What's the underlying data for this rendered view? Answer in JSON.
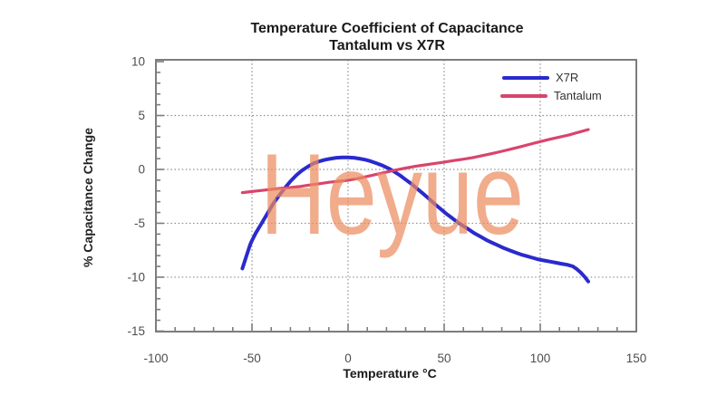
{
  "chart_data": {
    "type": "line",
    "title": "Temperature Coefficient of Capacitance",
    "subtitle": "Tantalum vs X7R",
    "xlabel": "Temperature °C",
    "ylabel": "% Capacitance Change",
    "xlim": [
      -100,
      150
    ],
    "ylim": [
      -15.05,
      10.17
    ],
    "x_ticks": [
      -100,
      -50,
      0,
      50,
      100,
      150
    ],
    "y_ticks": [
      10,
      5,
      0,
      -5,
      -10,
      -15
    ],
    "x_minor_step": 10,
    "y_minor_step": 1,
    "x_gridlines": [
      -50,
      0,
      50,
      100
    ],
    "y_gridlines": [
      5,
      0,
      -5,
      -10
    ],
    "grid_style": "dotted",
    "legend_position": "top-right-inside",
    "colors": {
      "axis": "#7d7d7d",
      "grid": "#8f8f8f",
      "tick_label": "#4d4d4d",
      "title": "#1a1a1a"
    },
    "watermark": {
      "text": "Heyue",
      "color": "rgba(235,140,95,0.72)"
    },
    "series": [
      {
        "name": "X7R",
        "color": "#2a2acd",
        "width": 4,
        "points": [
          [
            -55,
            -9.2
          ],
          [
            -53,
            -8.1
          ],
          [
            -51,
            -7.0
          ],
          [
            -50,
            -6.6
          ],
          [
            -48,
            -5.9
          ],
          [
            -45,
            -5.0
          ],
          [
            -42,
            -4.1
          ],
          [
            -39,
            -3.2
          ],
          [
            -36,
            -2.45
          ],
          [
            -33,
            -1.75
          ],
          [
            -30,
            -1.1
          ],
          [
            -27,
            -0.55
          ],
          [
            -24,
            -0.1
          ],
          [
            -21,
            0.25
          ],
          [
            -18,
            0.55
          ],
          [
            -15,
            0.75
          ],
          [
            -12,
            0.9
          ],
          [
            -9,
            1.0
          ],
          [
            -6,
            1.08
          ],
          [
            -3,
            1.12
          ],
          [
            0,
            1.12
          ],
          [
            3,
            1.08
          ],
          [
            6,
            1.0
          ],
          [
            9,
            0.9
          ],
          [
            12,
            0.75
          ],
          [
            15,
            0.55
          ],
          [
            18,
            0.35
          ],
          [
            21,
            0.1
          ],
          [
            24,
            -0.2
          ],
          [
            27,
            -0.55
          ],
          [
            30,
            -0.95
          ],
          [
            33,
            -1.35
          ],
          [
            36,
            -1.8
          ],
          [
            39,
            -2.25
          ],
          [
            42,
            -2.7
          ],
          [
            45,
            -3.2
          ],
          [
            48,
            -3.65
          ],
          [
            51,
            -4.1
          ],
          [
            54,
            -4.5
          ],
          [
            57,
            -4.9
          ],
          [
            60,
            -5.25
          ],
          [
            63,
            -5.6
          ],
          [
            66,
            -5.95
          ],
          [
            69,
            -6.25
          ],
          [
            72,
            -6.55
          ],
          [
            75,
            -6.8
          ],
          [
            78,
            -7.05
          ],
          [
            81,
            -7.3
          ],
          [
            84,
            -7.5
          ],
          [
            87,
            -7.7
          ],
          [
            90,
            -7.9
          ],
          [
            93,
            -8.05
          ],
          [
            96,
            -8.2
          ],
          [
            99,
            -8.35
          ],
          [
            102,
            -8.45
          ],
          [
            105,
            -8.55
          ],
          [
            108,
            -8.65
          ],
          [
            111,
            -8.75
          ],
          [
            114,
            -8.85
          ],
          [
            117,
            -9.0
          ],
          [
            119,
            -9.25
          ],
          [
            121,
            -9.55
          ],
          [
            123,
            -9.95
          ],
          [
            125,
            -10.4
          ]
        ]
      },
      {
        "name": "Tantalum",
        "color": "#d8456b",
        "width": 3.2,
        "points": [
          [
            -55,
            -2.15
          ],
          [
            -50,
            -2.05
          ],
          [
            -45,
            -1.95
          ],
          [
            -40,
            -1.85
          ],
          [
            -35,
            -1.75
          ],
          [
            -30,
            -1.68
          ],
          [
            -25,
            -1.58
          ],
          [
            -20,
            -1.45
          ],
          [
            -15,
            -1.33
          ],
          [
            -10,
            -1.2
          ],
          [
            -5,
            -1.1
          ],
          [
            0,
            -1.0
          ],
          [
            5,
            -0.85
          ],
          [
            10,
            -0.65
          ],
          [
            15,
            -0.45
          ],
          [
            20,
            -0.25
          ],
          [
            25,
            -0.05
          ],
          [
            30,
            0.12
          ],
          [
            35,
            0.28
          ],
          [
            40,
            0.42
          ],
          [
            45,
            0.55
          ],
          [
            50,
            0.68
          ],
          [
            55,
            0.82
          ],
          [
            60,
            0.95
          ],
          [
            65,
            1.1
          ],
          [
            70,
            1.28
          ],
          [
            75,
            1.48
          ],
          [
            80,
            1.68
          ],
          [
            85,
            1.9
          ],
          [
            90,
            2.12
          ],
          [
            95,
            2.35
          ],
          [
            100,
            2.58
          ],
          [
            105,
            2.8
          ],
          [
            110,
            3.0
          ],
          [
            115,
            3.2
          ],
          [
            120,
            3.45
          ],
          [
            125,
            3.7
          ]
        ]
      }
    ]
  }
}
